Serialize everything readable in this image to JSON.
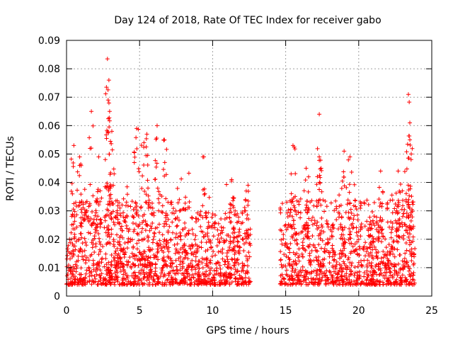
{
  "chart_data": {
    "type": "scatter",
    "title": "Day 124 of 2018, Rate Of TEC Index for receiver gabo",
    "xlabel": "GPS time / hours",
    "ylabel": "ROTI / TECUs",
    "xlim": [
      0,
      25
    ],
    "ylim": [
      0,
      0.09
    ],
    "xticks": [
      0,
      5,
      10,
      15,
      20,
      25
    ],
    "xtick_labels": [
      "0",
      "5",
      "10",
      "15",
      "20",
      "25"
    ],
    "yticks": [
      0,
      0.01,
      0.02,
      0.03,
      0.04,
      0.05,
      0.06,
      0.07,
      0.08,
      0.09
    ],
    "ytick_labels": [
      "0",
      "0.01",
      "0.02",
      "0.03",
      "0.04",
      "0.05",
      "0.06",
      "0.07",
      "0.08",
      "0.09"
    ],
    "grid": true,
    "marker": "+",
    "marker_color": "#ff0000",
    "data_gap_hours": [
      12.6,
      14.6
    ],
    "segments": [
      {
        "x_start": 0.0,
        "x_end": 12.6
      },
      {
        "x_start": 14.6,
        "x_end": 23.85
      }
    ],
    "peaks": [
      {
        "x": 0.5,
        "y": 0.053
      },
      {
        "x": 0.9,
        "y": 0.049
      },
      {
        "x": 1.7,
        "y": 0.065
      },
      {
        "x": 2.2,
        "y": 0.049
      },
      {
        "x": 2.8,
        "y": 0.0835
      },
      {
        "x": 2.9,
        "y": 0.076
      },
      {
        "x": 2.85,
        "y": 0.069
      },
      {
        "x": 2.95,
        "y": 0.065
      },
      {
        "x": 3.1,
        "y": 0.058
      },
      {
        "x": 4.8,
        "y": 0.059
      },
      {
        "x": 5.3,
        "y": 0.054
      },
      {
        "x": 5.5,
        "y": 0.057
      },
      {
        "x": 6.2,
        "y": 0.06
      },
      {
        "x": 6.7,
        "y": 0.055
      },
      {
        "x": 9.4,
        "y": 0.049
      },
      {
        "x": 11.3,
        "y": 0.041
      },
      {
        "x": 12.3,
        "y": 0.037
      },
      {
        "x": 15.5,
        "y": 0.053
      },
      {
        "x": 16.4,
        "y": 0.045
      },
      {
        "x": 17.3,
        "y": 0.064
      },
      {
        "x": 17.3,
        "y": 0.049
      },
      {
        "x": 19.0,
        "y": 0.051
      },
      {
        "x": 19.4,
        "y": 0.049
      },
      {
        "x": 21.5,
        "y": 0.044
      },
      {
        "x": 22.7,
        "y": 0.044
      },
      {
        "x": 23.4,
        "y": 0.071
      },
      {
        "x": 23.5,
        "y": 0.061
      },
      {
        "x": 23.5,
        "y": 0.055
      }
    ]
  }
}
